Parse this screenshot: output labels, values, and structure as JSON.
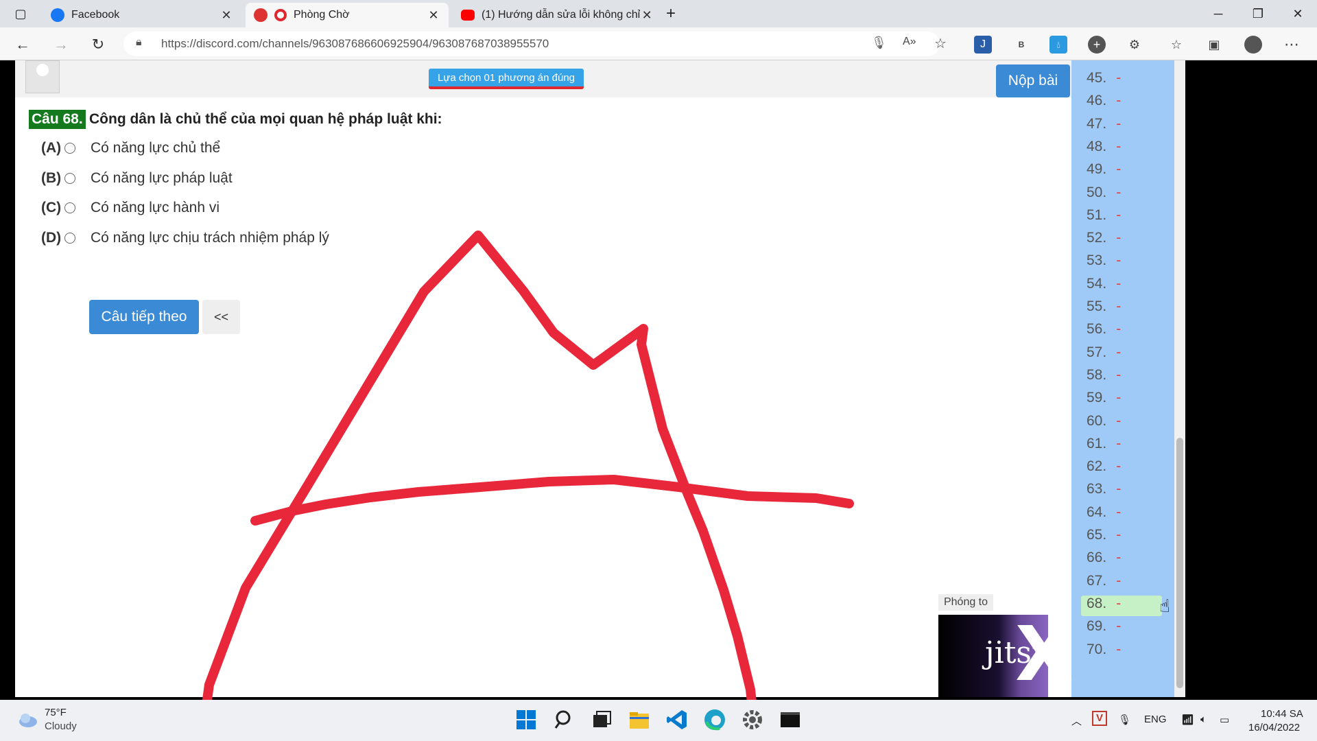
{
  "browser": {
    "tabs": [
      {
        "title": "Facebook",
        "favicon_color": "#1877f2"
      },
      {
        "title": "Phòng Chờ",
        "favicon_color": "#e0262f"
      },
      {
        "title": "(1) Hướng dẫn sửa lỗi không chỉ",
        "favicon_color": "#ff0000"
      }
    ],
    "new_tab_label": "+",
    "url": "https://discord.com/channels/963087686606925904/963087687038955570"
  },
  "quiz": {
    "hint": "Lựa chọn 01 phương án đúng",
    "submit_label": "Nộp bài",
    "question_number": "Câu 68.",
    "question_text": "Công dân là chủ thể của mọi quan hệ pháp luật khi:",
    "options": [
      {
        "letter": "(A)",
        "text": "Có năng lực chủ thể"
      },
      {
        "letter": "(B)",
        "text": "Có năng lực pháp luật"
      },
      {
        "letter": "(C)",
        "text": "Có năng lực hành vi"
      },
      {
        "letter": "(D)",
        "text": "Có năng lực chịu trách nhiệm pháp lý"
      }
    ],
    "next_label": "Câu tiếp theo",
    "prev_label": "<<"
  },
  "question_list": {
    "items": [
      "45.",
      "46.",
      "47.",
      "48.",
      "49.",
      "50.",
      "51.",
      "52.",
      "53.",
      "54.",
      "55.",
      "56.",
      "57.",
      "58.",
      "59.",
      "60.",
      "61.",
      "62.",
      "63.",
      "64.",
      "65.",
      "66.",
      "67.",
      "68.",
      "69.",
      "70."
    ],
    "dash": "-",
    "current": "68."
  },
  "video": {
    "zoom_label": "Phóng to",
    "logo_text": "jitsi"
  },
  "taskbar": {
    "temperature": "75°F",
    "weather": "Cloudy",
    "language": "ENG",
    "time": "10:44 SA",
    "date": "16/04/2022"
  },
  "colors": {
    "accent_blue": "#3b8ad6",
    "sidebar_blue": "#9fcaf7",
    "drawing_red": "#e8283a",
    "question_green": "#157a1e"
  }
}
